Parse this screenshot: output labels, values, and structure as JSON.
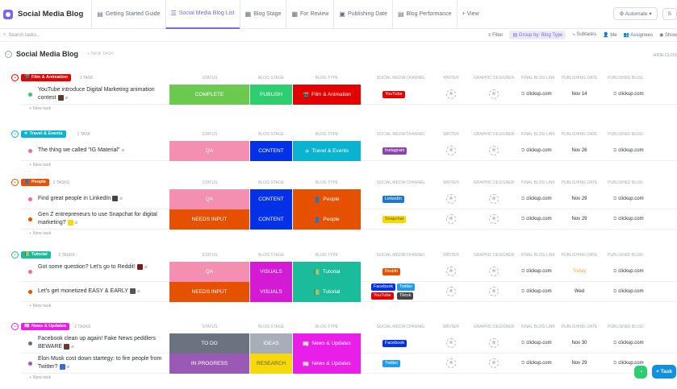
{
  "app": {
    "title": "Social Media Blog",
    "icon": "list-icon"
  },
  "tabs": [
    {
      "label": "Getting Started Guide",
      "icon": "doc-icon"
    },
    {
      "label": "Social Media Blog List",
      "icon": "list-icon",
      "active": true
    },
    {
      "label": "Blog Stage",
      "icon": "board-icon"
    },
    {
      "label": "For Review",
      "icon": "board-icon"
    },
    {
      "label": "Publishing Date",
      "icon": "calendar-icon"
    },
    {
      "label": "Blog Performance",
      "icon": "doc-icon"
    }
  ],
  "add_view": "+ View",
  "automate": "Automate",
  "share": "S",
  "toolbar": {
    "search_placeholder": "Search tasks...",
    "filter": "Filter",
    "group": "Group by: Blog Type",
    "subtasks": "Subtasks",
    "me": "Me",
    "assignees": "Assignees",
    "show": "Show"
  },
  "list": {
    "name": "Social Media Blog",
    "new_task": "+ NEW TASK",
    "hide_closed": "HIDE CLOS"
  },
  "columns": [
    "STATUS",
    "BLOG STAGE",
    "BLOG TYPE",
    "SOCIAL MEDIA CHANNEL",
    "WRITER",
    "GRAPHIC DESIGNER",
    "FINAL BLOG LINK",
    "PUBLISHING DATE",
    "PUBLISHED BLOG"
  ],
  "new_task_label": "+ New task",
  "groups": [
    {
      "label": "Film & Animation",
      "color": "#e50000",
      "icon": "🎬",
      "count": "1 TASK",
      "tasks": [
        {
          "name": "YouTube introduce Digital Marketing animation contest",
          "dot": "#2ecd6f",
          "emoji_color": "#5a3a2a",
          "status": "COMPLETE",
          "status_color": "#6bc950",
          "stage": "PUBLISH",
          "stage_color": "#2ecd6f",
          "type": "Film & Animation",
          "type_color": "#e50000",
          "type_icon": "🎬",
          "channels": [
            {
              "name": "YouTube",
              "color": "#e50000"
            }
          ],
          "link": "clickup.com",
          "date": "Nov 14",
          "date_today": false,
          "published": "clickup.com"
        }
      ]
    },
    {
      "label": "Travel & Events",
      "color": "#0ab4d1",
      "icon": "✈",
      "count": "1 TASK",
      "tasks": [
        {
          "name": "The thing we called \"IG Material\"",
          "dot": "#f26ba8",
          "emoji_color": "",
          "status": "QA",
          "status_color": "#f48fb1",
          "stage": "CONTENT",
          "stage_color": "#0231e8",
          "type": "Travel & Events",
          "type_color": "#0ab4d1",
          "type_icon": "✈",
          "channels": [
            {
              "name": "Instagram",
              "color": "#8e44ad"
            }
          ],
          "link": "clickup.com",
          "date": "Nov 26",
          "date_today": false,
          "published": "clickup.com"
        }
      ]
    },
    {
      "label": "People",
      "color": "#e65100",
      "icon": "👤",
      "count": "2 TASKS",
      "tasks": [
        {
          "name": "Find great people in LinkedIn",
          "dot": "#f26ba8",
          "emoji_color": "#444444",
          "status": "QA",
          "status_color": "#f48fb1",
          "stage": "CONTENT",
          "stage_color": "#0231e8",
          "type": "People",
          "type_color": "#e65100",
          "type_icon": "👤",
          "channels": [
            {
              "name": "LinkedIn",
              "color": "#1f77c9"
            }
          ],
          "link": "clickup.com",
          "date": "Nov 29",
          "date_today": false,
          "published": "clickup.com"
        },
        {
          "name": "Gen Z entrepreneurs to use Snapchat for digital marketing?",
          "dot": "#e65100",
          "emoji_color": "#f5d90a",
          "status": "NEEDS INPUT",
          "status_color": "#e65100",
          "stage": "CONTENT",
          "stage_color": "#0231e8",
          "type": "People",
          "type_color": "#e65100",
          "type_icon": "👤",
          "channels": [
            {
              "name": "Snapchat",
              "color": "#f5d90a"
            }
          ],
          "link": "clickup.com",
          "date": "Nov 29",
          "date_today": false,
          "published": "clickup.com"
        }
      ]
    },
    {
      "label": "Tutorial",
      "color": "#1bbc9b",
      "icon": "📗",
      "count": "2 TASKS",
      "tasks": [
        {
          "name": "Got some question? Let's go to Reddit!",
          "dot": "#f26ba8",
          "emoji_color": "#7a1a1a",
          "status": "QA",
          "status_color": "#f48fb1",
          "stage": "VISUALS",
          "stage_color": "#d41ad4",
          "type": "Tutorial",
          "type_color": "#1bbc9b",
          "type_icon": "📗",
          "channels": [
            {
              "name": "Reddit",
              "color": "#e65100"
            }
          ],
          "link": "clickup.com",
          "date": "Today",
          "date_today": true,
          "published": "clickup.com"
        },
        {
          "name": "Let's get monetized EASY & EARLY",
          "dot": "#e65100",
          "emoji_color": "#555555",
          "status": "NEEDS INPUT",
          "status_color": "#e65100",
          "stage": "VISUALS",
          "stage_color": "#d41ad4",
          "type": "Tutorial",
          "type_color": "#1bbc9b",
          "type_icon": "📗",
          "channels": [
            {
              "name": "Facebook",
              "color": "#0231e8"
            },
            {
              "name": "Twitter",
              "color": "#1f9cf0"
            },
            {
              "name": "YouTube",
              "color": "#e50000"
            },
            {
              "name": "Tiktok",
              "color": "#444444"
            }
          ],
          "link": "clickup.com",
          "date": "Wed",
          "date_today": false,
          "published": "clickup.com"
        }
      ]
    },
    {
      "label": "News & Updates",
      "color": "#e91ee9",
      "icon": "📰",
      "count": "2 TASKS",
      "tasks": [
        {
          "name": "Facebook clean up again! Fake News peddlers BEWARE",
          "dot": "#656f7d",
          "emoji_color": "#6a3a2a",
          "status": "TO DO",
          "status_color": "#6b7280",
          "stage": "IDEAS",
          "stage_color": "#a8aeb8",
          "type": "News & Updates",
          "type_color": "#e91ee9",
          "type_icon": "📰",
          "channels": [
            {
              "name": "Facebook",
              "color": "#0231e8"
            }
          ],
          "link": "clickup.com",
          "date": "Nov 30",
          "date_today": false,
          "published": "clickup.com"
        },
        {
          "name": "Elon Musk cost down startegy: to fire people from Twitter?",
          "dot": "#9b59b6",
          "emoji_color": "#3a6acc",
          "status": "IN PROGRESS",
          "status_color": "#9b59b6",
          "stage": "RESEARCH",
          "stage_color": "#f5d90a",
          "type": "News & Updates",
          "type_color": "#e91ee9",
          "type_icon": "📰",
          "channels": [
            {
              "name": "Twitter",
              "color": "#1f9cf0"
            }
          ],
          "link": "clickup.com",
          "date": "Nov 29",
          "date_today": false,
          "published": "clickup.com"
        }
      ]
    }
  ],
  "fab": {
    "check_icon": "check-circle-icon",
    "task_label": "+ Task"
  }
}
